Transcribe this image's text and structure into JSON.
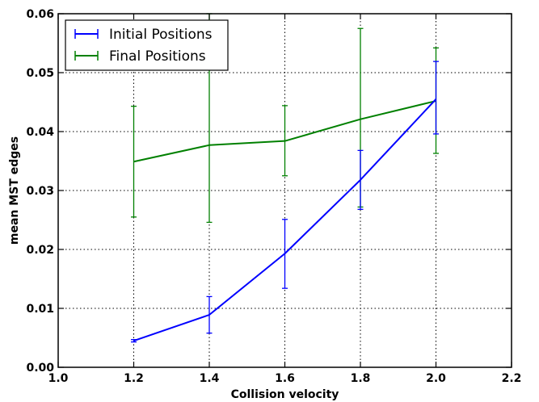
{
  "chart_data": {
    "type": "line",
    "title": "",
    "xlabel": "Collision velocity",
    "ylabel": "mean MST edges",
    "xlim": [
      1.0,
      2.2
    ],
    "ylim": [
      0.0,
      0.06
    ],
    "x_ticks": [
      1.0,
      1.2,
      1.4,
      1.6,
      1.8,
      2.0,
      2.2
    ],
    "x_tick_labels": [
      "1.0",
      "1.2",
      "1.4",
      "1.6",
      "1.8",
      "2.0",
      "2.2"
    ],
    "y_ticks": [
      0.0,
      0.01,
      0.02,
      0.03,
      0.04,
      0.05,
      0.06
    ],
    "y_tick_labels": [
      "0.00",
      "0.01",
      "0.02",
      "0.03",
      "0.04",
      "0.05",
      "0.06"
    ],
    "grid": true,
    "grid_style": "dotted",
    "legend_position": "top-left",
    "x": [
      1.2,
      1.4,
      1.6,
      1.8,
      2.0
    ],
    "series": [
      {
        "name": "Initial Positions",
        "color": "#0000ff",
        "values": [
          0.0045,
          0.0089,
          0.0193,
          0.0318,
          0.0455
        ],
        "err_low": [
          0.0043,
          0.0058,
          0.0134,
          0.0268,
          0.0396
        ],
        "err_high": [
          0.0047,
          0.012,
          0.0251,
          0.0368,
          0.0519
        ]
      },
      {
        "name": "Final Positions",
        "color": "#008000",
        "values": [
          0.0349,
          0.0377,
          0.0384,
          0.0421,
          0.0452
        ],
        "err_low": [
          0.0255,
          0.0246,
          0.0325,
          0.0272,
          0.0363
        ],
        "err_high": [
          0.0443,
          0.06,
          0.0444,
          0.0575,
          0.0542
        ]
      }
    ]
  }
}
